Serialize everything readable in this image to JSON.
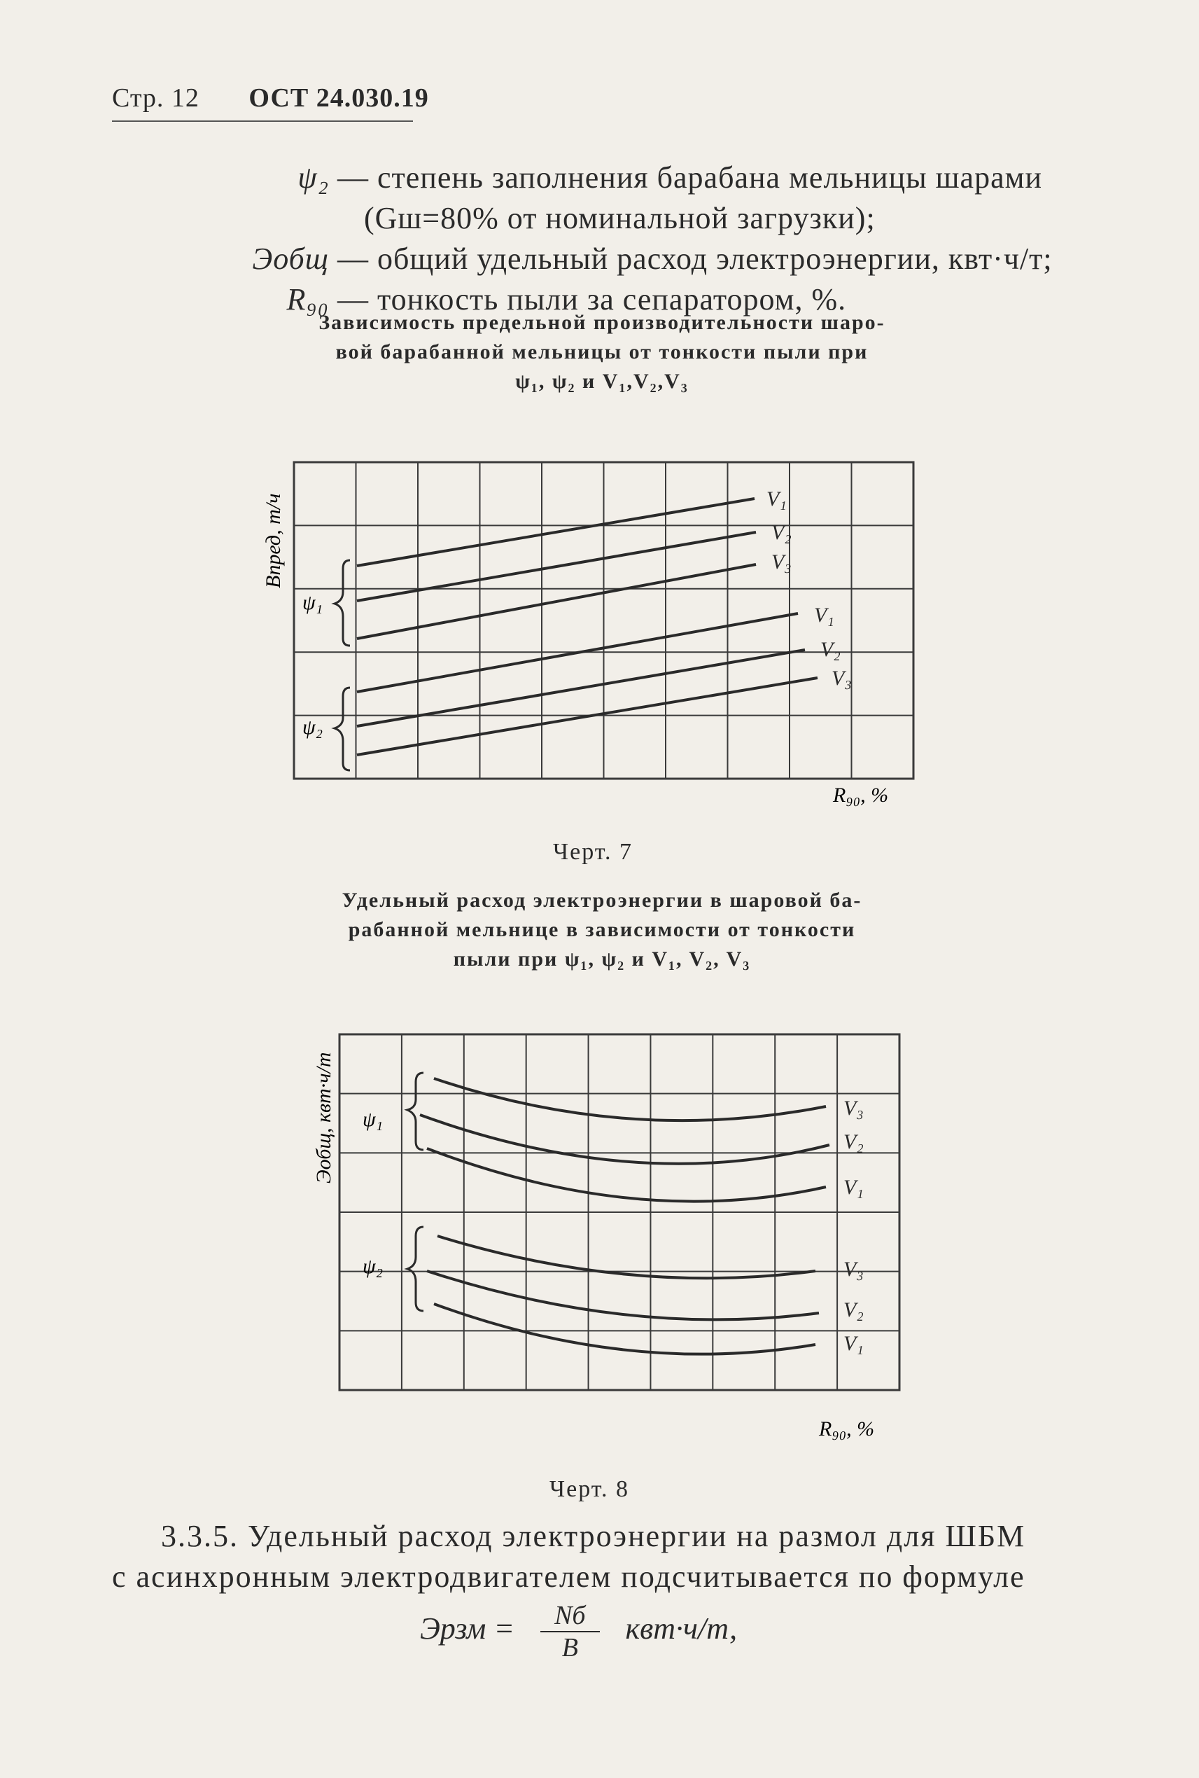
{
  "header": {
    "page": "Стр. 12",
    "standard": "ОСТ 24.030.19"
  },
  "definitions": [
    {
      "symbol": "ψ₂",
      "text": "— степень заполнения барабана мельницы шарами"
    },
    {
      "symbol": "",
      "text": "(Gш=80% от номинальной загрузки);"
    },
    {
      "symbol": "Эобщ",
      "text": "— общий удельный расход электроэнергии, квт·ч/т;"
    },
    {
      "symbol": "R₉₀",
      "text": "— тонкость пыли за сепаратором, %."
    }
  ],
  "figure7": {
    "title_lines": [
      "Зависимость предельной производительности шаро-",
      "вой барабанной мельницы от тонкости пыли при",
      "ψ₁, ψ₂ и V₁,V₂,V₃"
    ],
    "caption": "Черт. 7"
  },
  "figure8": {
    "title_lines": [
      "Удельный расход электроэнергии в шаровой ба-",
      "рабанной мельнице в зависимости от тонкости",
      "пыли при ψ₁, ψ₂ и V₁, V₂, V₃"
    ],
    "caption": "Черт. 8"
  },
  "paragraph": {
    "line1": "3.3.5. Удельный расход электроэнергии на размол для ШБМ",
    "line2": "с асинхронным электродвигателем подсчитывается по формуле"
  },
  "formula": {
    "lhs": "Эрзм =",
    "numerator": "Nб",
    "denominator": "B",
    "unit": "квт·ч/т,"
  },
  "chart_data": [
    {
      "type": "line",
      "xlabel": "R₉₀, %",
      "ylabel": "Bпред, т/ч",
      "groups": [
        {
          "group": "ψ₁",
          "series": [
            "V₁",
            "V₂",
            "V₃"
          ]
        },
        {
          "group": "ψ₂",
          "series": [
            "V₁",
            "V₂",
            "V₃"
          ]
        }
      ],
      "grid": true,
      "note": "unscaled qualitative chart, straight rising lines"
    },
    {
      "type": "line",
      "xlabel": "R₉₀, %",
      "ylabel": "Эобщ, квт·ч/т",
      "groups": [
        {
          "group": "ψ₁",
          "series": [
            "V₃",
            "V₂",
            "V₁"
          ]
        },
        {
          "group": "ψ₂",
          "series": [
            "V₃",
            "V₂",
            "V₁"
          ]
        }
      ],
      "grid": true,
      "note": "unscaled qualitative chart, U-shaped curves"
    }
  ]
}
